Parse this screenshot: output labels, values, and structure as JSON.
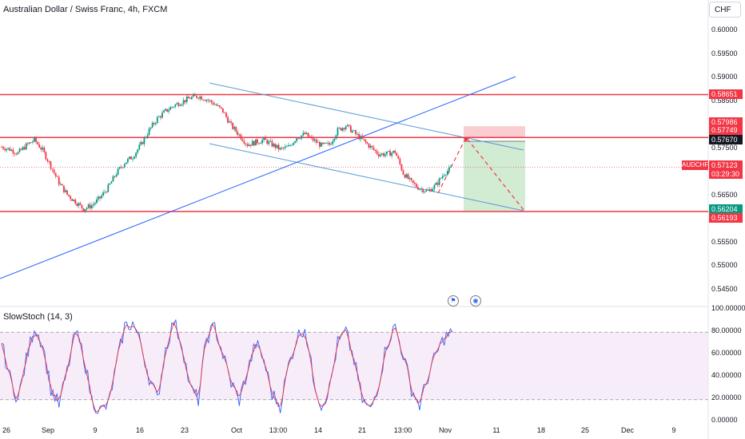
{
  "header": {
    "title": "Australian Dollar / Swiss Franc, 4h, FXCM",
    "currency": "CHF"
  },
  "price_axis": {
    "ticks": [
      "0.60000",
      "0.59500",
      "0.59000",
      "0.58500",
      "0.58000",
      "0.57500",
      "0.57000",
      "0.56500",
      "0.56000",
      "0.55500",
      "0.55000",
      "0.54500"
    ]
  },
  "price_labels": [
    {
      "text": "0.58651",
      "color": "#f23645"
    },
    {
      "text": "0.57986",
      "color": "#f23645"
    },
    {
      "text": "0.57749",
      "color": "#f23645"
    },
    {
      "text": "0.57670",
      "color": "#131722"
    },
    {
      "text": "0.57123",
      "color": "#f23645"
    },
    {
      "text": "03:29:30",
      "color": "#f23645"
    },
    {
      "text": "0.56204",
      "color": "#089981"
    },
    {
      "text": "0.56193",
      "color": "#f23645"
    }
  ],
  "symbol_label": "AUDCHF",
  "time_axis": {
    "ticks": [
      "26",
      "Sep",
      "9",
      "16",
      "23",
      "Oct",
      "13:00",
      "14",
      "21",
      "13:00",
      "Nov",
      "11",
      "18",
      "25",
      "Dec",
      "9"
    ]
  },
  "oscillator": {
    "title": "SlowStoch (14, 3)",
    "ticks": [
      "100.00000",
      "80.00000",
      "60.00000",
      "40.00000",
      "20.00000",
      "0.00000"
    ]
  },
  "events": [
    {
      "icon": "flag-icon",
      "glyph": "⚑"
    },
    {
      "icon": "globe-icon",
      "glyph": "◉"
    }
  ],
  "colors": {
    "up": "#089981",
    "down": "#f23645",
    "horizontal_levels": "#f23645",
    "channel": "#5b9bd5",
    "trendline": "#2962ff",
    "stoch_k": "#2962ff",
    "stoch_d": "#f23645",
    "stoch_band": "#f3e5f5"
  },
  "chart_data": {
    "type": "candlestick",
    "price_levels": [
      0.58651,
      0.57749,
      0.56193
    ],
    "last_price": 0.57123,
    "trade_setup": {
      "entry": 0.57749,
      "stop": 0.57986,
      "target": 0.56204,
      "current_ref": 0.5767
    },
    "close_path": [
      0.5755,
      0.575,
      0.5742,
      0.5758,
      0.577,
      0.5748,
      0.5715,
      0.568,
      0.5655,
      0.564,
      0.5625,
      0.5632,
      0.5648,
      0.567,
      0.57,
      0.5722,
      0.5735,
      0.576,
      0.579,
      0.5815,
      0.583,
      0.5842,
      0.585,
      0.5858,
      0.5862,
      0.5855,
      0.5845,
      0.583,
      0.58,
      0.578,
      0.576,
      0.5765,
      0.577,
      0.576,
      0.575,
      0.5755,
      0.5775,
      0.5782,
      0.577,
      0.5758,
      0.576,
      0.579,
      0.58,
      0.5785,
      0.577,
      0.5755,
      0.574,
      0.574,
      0.5745,
      0.57,
      0.568,
      0.5668,
      0.5662,
      0.5675,
      0.57,
      0.5712
    ],
    "stoch_path": [
      70,
      40,
      20,
      55,
      85,
      70,
      30,
      15,
      45,
      80,
      60,
      20,
      10,
      15,
      50,
      85,
      88,
      70,
      40,
      20,
      65,
      90,
      70,
      30,
      20,
      75,
      85,
      60,
      35,
      20,
      45,
      70,
      55,
      25,
      15,
      50,
      75,
      85,
      40,
      15,
      30,
      70,
      80,
      55,
      20,
      10,
      35,
      70,
      85,
      60,
      30,
      15,
      40,
      60,
      75,
      80
    ]
  }
}
